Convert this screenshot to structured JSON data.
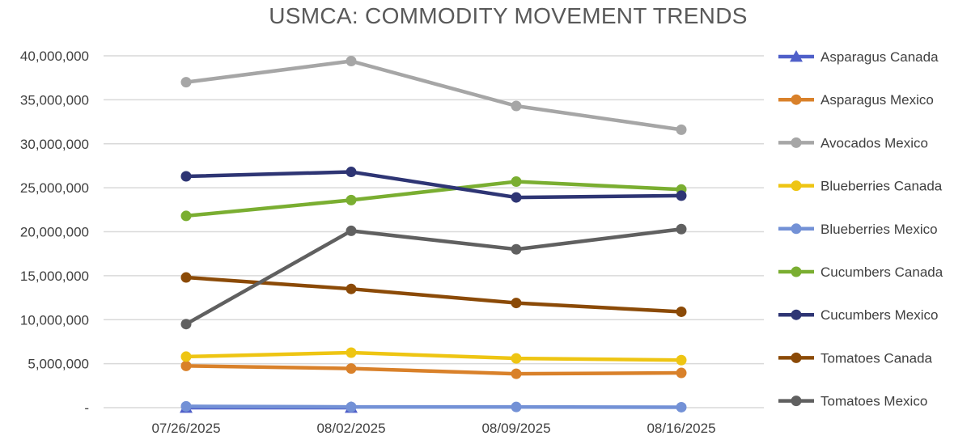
{
  "chart_data": {
    "type": "line",
    "title": "USMCA: COMMODITY MOVEMENT TRENDS",
    "xlabel": "",
    "ylabel": "",
    "categories": [
      "07/26/2025",
      "08/02/2025",
      "08/09/2025",
      "08/16/2025"
    ],
    "ylim": [
      0,
      40000000
    ],
    "yticks": [
      {
        "value": 0,
        "label": "-"
      },
      {
        "value": 5000000,
        "label": "5,000,000"
      },
      {
        "value": 10000000,
        "label": "10,000,000"
      },
      {
        "value": 15000000,
        "label": "15,000,000"
      },
      {
        "value": 20000000,
        "label": "20,000,000"
      },
      {
        "value": 25000000,
        "label": "25,000,000"
      },
      {
        "value": 30000000,
        "label": "30,000,000"
      },
      {
        "value": 35000000,
        "label": "35,000,000"
      },
      {
        "value": 40000000,
        "label": "40,000,000"
      }
    ],
    "grid": true,
    "legend_position": "right",
    "series": [
      {
        "name": "Asparagus Canada",
        "color": "#4F5FC9",
        "marker": "triangle",
        "values": [
          0,
          0,
          null,
          null
        ]
      },
      {
        "name": "Asparagus Mexico",
        "color": "#D9812A",
        "marker": "circle",
        "values": [
          4750000,
          4450000,
          3850000,
          3950000
        ]
      },
      {
        "name": "Avocados Mexico",
        "color": "#A6A6A6",
        "marker": "circle",
        "values": [
          37000000,
          39400000,
          34300000,
          31600000
        ]
      },
      {
        "name": "Blueberries Canada",
        "color": "#EEC513",
        "marker": "circle",
        "values": [
          5800000,
          6250000,
          5600000,
          5400000
        ]
      },
      {
        "name": "Blueberries Mexico",
        "color": "#7391D6",
        "marker": "circle",
        "values": [
          150000,
          80000,
          80000,
          50000
        ]
      },
      {
        "name": "Cucumbers Canada",
        "color": "#7AAE31",
        "marker": "circle",
        "values": [
          21800000,
          23600000,
          25700000,
          24800000
        ]
      },
      {
        "name": "Cucumbers Mexico",
        "color": "#2E3574",
        "marker": "circle",
        "values": [
          26300000,
          26800000,
          23900000,
          24100000
        ]
      },
      {
        "name": "Tomatoes Canada",
        "color": "#8B4A07",
        "marker": "circle",
        "values": [
          14800000,
          13500000,
          11900000,
          10900000
        ]
      },
      {
        "name": "Tomatoes Mexico",
        "color": "#606060",
        "marker": "circle",
        "values": [
          9500000,
          20100000,
          18000000,
          20300000
        ]
      }
    ]
  }
}
